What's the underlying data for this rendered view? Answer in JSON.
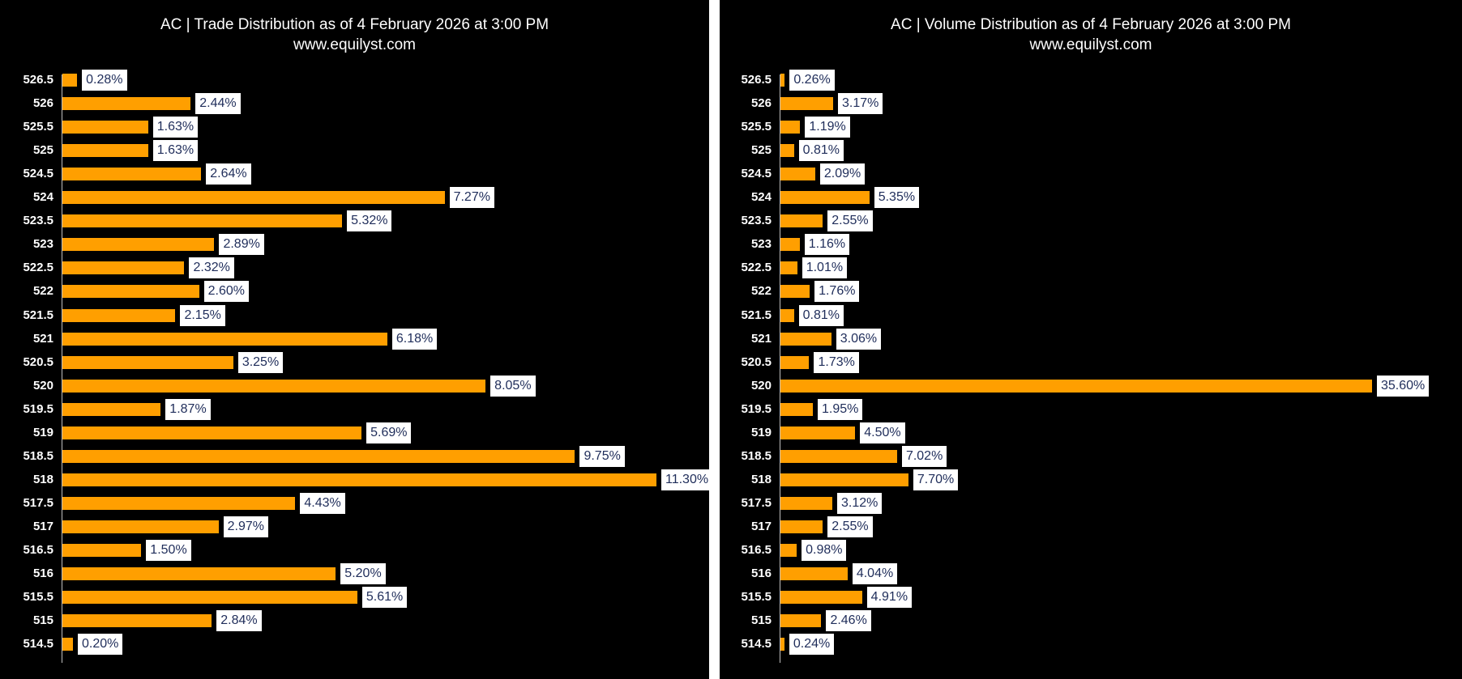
{
  "chart_data": [
    {
      "type": "bar",
      "orientation": "horizontal",
      "title": "AC | Trade Distribution as of 4 February 2026 at 3:00 PM",
      "subtitle": "www.equilyst.com",
      "categories": [
        "526.5",
        "526",
        "525.5",
        "525",
        "524.5",
        "524",
        "523.5",
        "523",
        "522.5",
        "522",
        "521.5",
        "521",
        "520.5",
        "520",
        "519.5",
        "519",
        "518.5",
        "518",
        "517.5",
        "517",
        "516.5",
        "516",
        "515.5",
        "515",
        "514.5"
      ],
      "values": [
        0.28,
        2.44,
        1.63,
        1.63,
        2.64,
        7.27,
        5.32,
        2.89,
        2.32,
        2.6,
        2.15,
        6.18,
        3.25,
        8.05,
        1.87,
        5.69,
        9.75,
        11.3,
        4.43,
        2.97,
        1.5,
        5.2,
        5.61,
        2.84,
        0.2
      ],
      "labels": [
        "0.28%",
        "2.44%",
        "1.63%",
        "1.63%",
        "2.64%",
        "7.27%",
        "5.32%",
        "2.89%",
        "2.32%",
        "2.60%",
        "2.15%",
        "6.18%",
        "3.25%",
        "8.05%",
        "1.87%",
        "5.69%",
        "9.75%",
        "11.30%",
        "4.43%",
        "2.97%",
        "1.50%",
        "5.20%",
        "5.61%",
        "2.84%",
        "0.20%"
      ],
      "xlim": [
        0,
        11.3
      ],
      "bar_color": "#ff9f00"
    },
    {
      "type": "bar",
      "orientation": "horizontal",
      "title": "AC | Volume Distribution as of 4 February 2026 at 3:00 PM",
      "subtitle": "www.equilyst.com",
      "categories": [
        "526.5",
        "526",
        "525.5",
        "525",
        "524.5",
        "524",
        "523.5",
        "523",
        "522.5",
        "522",
        "521.5",
        "521",
        "520.5",
        "520",
        "519.5",
        "519",
        "518.5",
        "518",
        "517.5",
        "517",
        "516.5",
        "516",
        "515.5",
        "515",
        "514.5"
      ],
      "values": [
        0.26,
        3.17,
        1.19,
        0.81,
        2.09,
        5.35,
        2.55,
        1.16,
        1.01,
        1.76,
        0.81,
        3.06,
        1.73,
        35.6,
        1.95,
        4.5,
        7.02,
        7.7,
        3.12,
        2.55,
        0.98,
        4.04,
        4.91,
        2.46,
        0.24
      ],
      "labels": [
        "0.26%",
        "3.17%",
        "1.19%",
        "0.81%",
        "2.09%",
        "5.35%",
        "2.55%",
        "1.16%",
        "1.01%",
        "1.76%",
        "0.81%",
        "3.06%",
        "1.73%",
        "35.60%",
        "1.95%",
        "4.50%",
        "7.02%",
        "7.70%",
        "3.12%",
        "2.55%",
        "0.98%",
        "4.04%",
        "4.91%",
        "2.46%",
        "0.24%"
      ],
      "xlim": [
        0,
        35.6
      ],
      "bar_color": "#ff9f00"
    }
  ]
}
